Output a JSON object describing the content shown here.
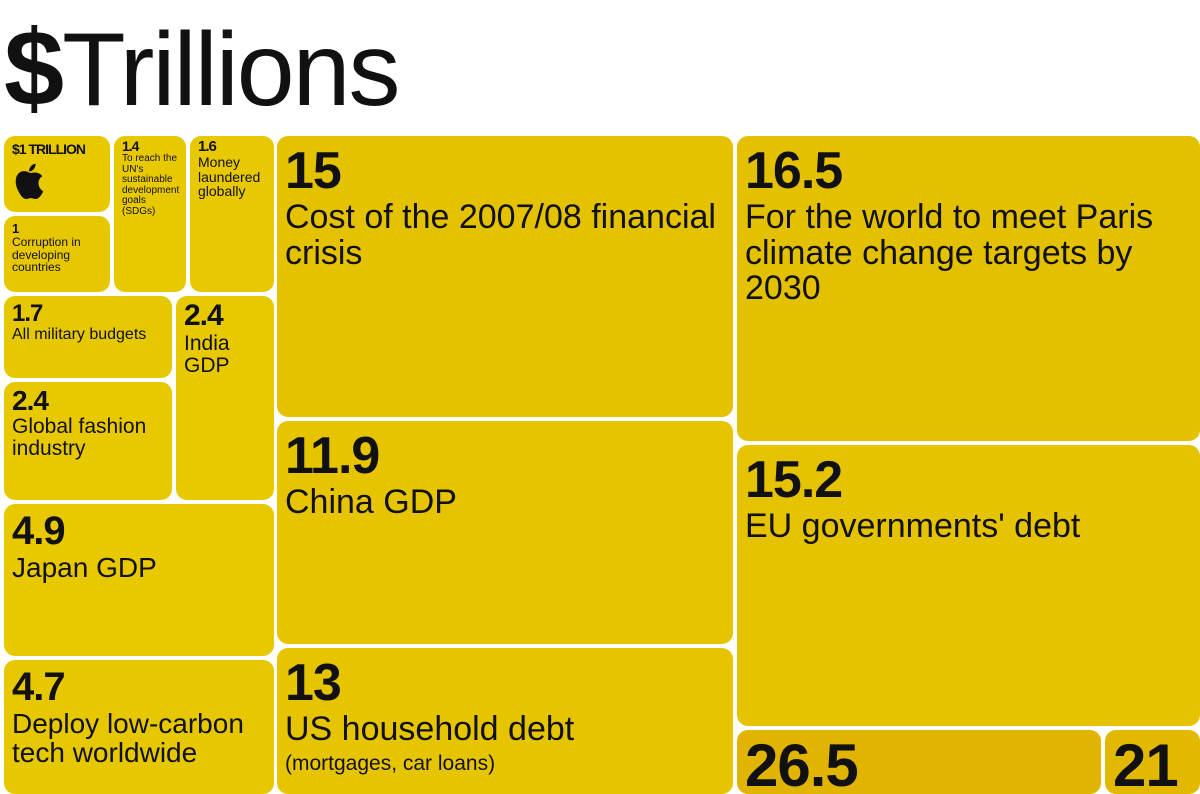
{
  "title": {
    "symbol": "$",
    "word": "Trillions"
  },
  "chart_data": {
    "type": "treemap",
    "title": "$Trillions",
    "unit": "trillion USD",
    "items": [
      {
        "id": "apple",
        "value": 1,
        "value_label": "$1 TRILLION",
        "label": "",
        "icon": "apple-logo-icon",
        "color": "#e8c900"
      },
      {
        "id": "corruption",
        "value": 1,
        "value_label": "1",
        "label": "Corruption in developing countries",
        "color": "#e6c700"
      },
      {
        "id": "sdgs",
        "value": 1.4,
        "value_label": "1.4",
        "label": "To reach the UN's sustainable development goals (SDGs)",
        "color": "#e8c900"
      },
      {
        "id": "laundered",
        "value": 1.6,
        "value_label": "1.6",
        "label": "Money laundered globally",
        "color": "#e8c800"
      },
      {
        "id": "military",
        "value": 1.7,
        "value_label": "1.7",
        "label": "All military budgets",
        "color": "#e6c800"
      },
      {
        "id": "india",
        "value": 2.4,
        "value_label": "2.4",
        "label": "India GDP",
        "color": "#e8c900"
      },
      {
        "id": "fashion",
        "value": 2.4,
        "value_label": "2.4",
        "label": "Global fashion industry",
        "color": "#e8c900"
      },
      {
        "id": "japan",
        "value": 4.9,
        "value_label": "4.9",
        "label": "Japan GDP",
        "color": "#e8c900"
      },
      {
        "id": "lowcarbon",
        "value": 4.7,
        "value_label": "4.7",
        "label": "Deploy low-carbon tech worldwide",
        "color": "#e6c700"
      },
      {
        "id": "crisis",
        "value": 15,
        "value_label": "15",
        "label": "Cost of the 2007/08 financial crisis",
        "color": "#e4c200"
      },
      {
        "id": "china",
        "value": 11.9,
        "value_label": "11.9",
        "label": "China GDP",
        "color": "#e6c500"
      },
      {
        "id": "ushousehold",
        "value": 13,
        "value_label": "13",
        "label": "US household debt",
        "sublabel": "(mortgages, car loans)",
        "color": "#e6c400"
      },
      {
        "id": "paris",
        "value": 16.5,
        "value_label": "16.5",
        "label": "For the world to meet Paris climate change targets by 2030",
        "color": "#e4c100"
      },
      {
        "id": "eudebt",
        "value": 15.2,
        "value_label": "15.2",
        "label": "EU governments' debt",
        "color": "#e6c300"
      },
      {
        "id": "v265",
        "value": 26.5,
        "value_label": "26.5",
        "label": "",
        "color": "#e0b400"
      },
      {
        "id": "v21",
        "value": 21,
        "value_label": "21",
        "label": "",
        "color": "#e2b900"
      }
    ]
  }
}
